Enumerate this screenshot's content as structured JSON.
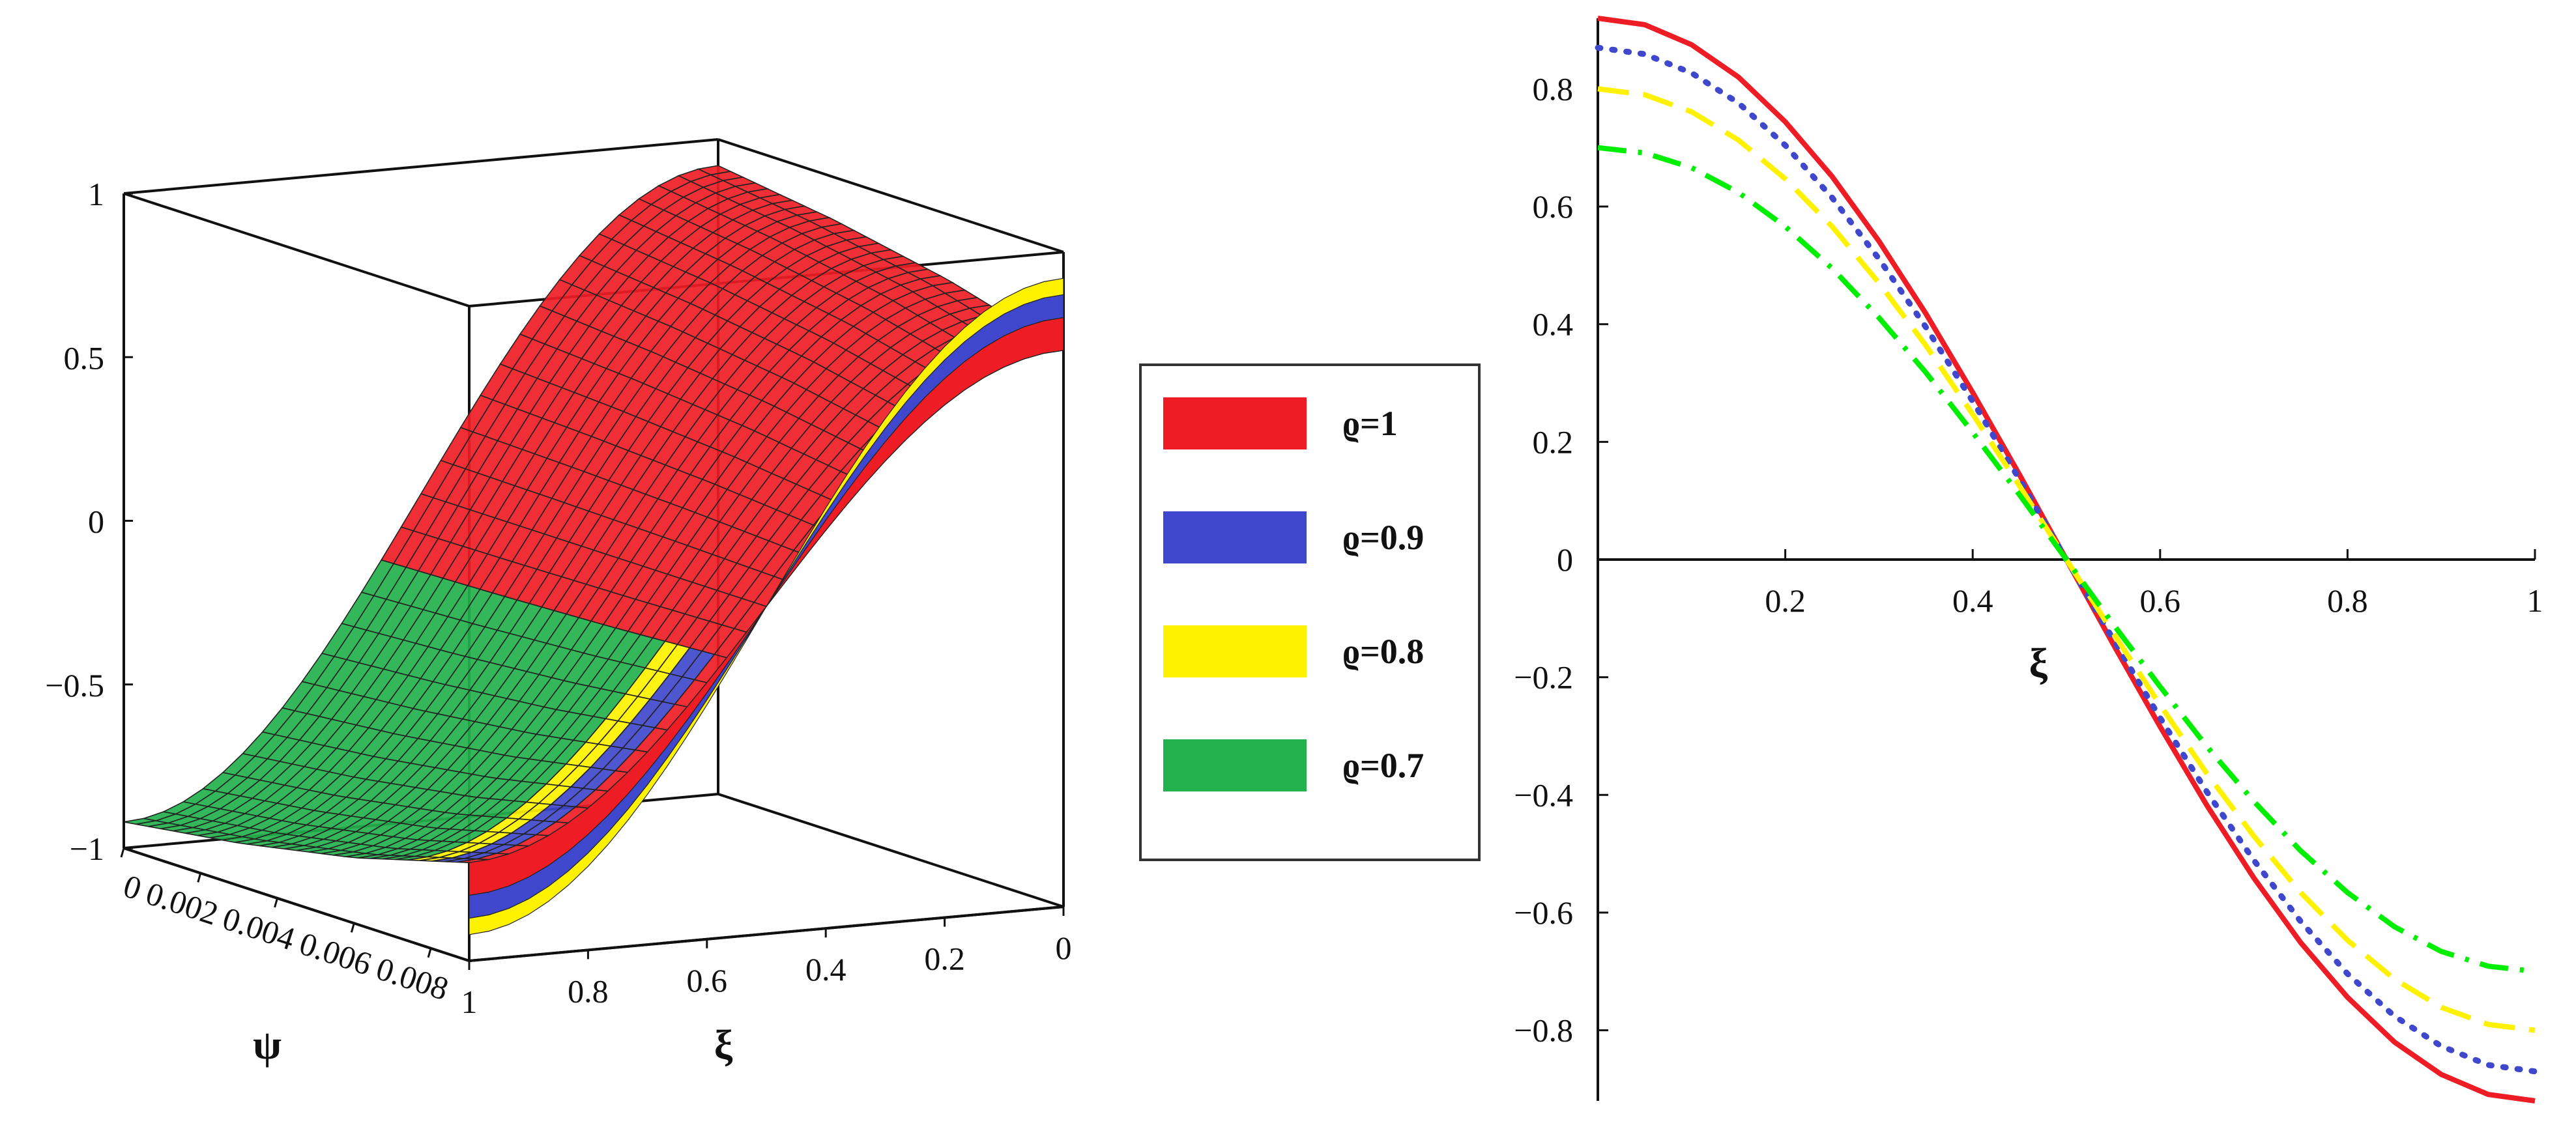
{
  "chart_data": [
    {
      "type": "surface",
      "title": "",
      "xlabel": "ψ",
      "ylabel": "ξ",
      "zlabel": "",
      "xlim": [
        0,
        0.009
      ],
      "ylim": [
        0,
        1
      ],
      "zlim": [
        -1,
        1
      ],
      "x_ticks": [
        "0",
        "0.002",
        "0.004",
        "0.006",
        "0.008"
      ],
      "y_ticks": [
        "1",
        "0.8",
        "0.6",
        "0.4",
        "0.2",
        "0"
      ],
      "z_ticks": [
        "1",
        "0.5",
        "0",
        "−0.5",
        "−1"
      ],
      "series": [
        {
          "name": "ϱ=1",
          "color": "#ee1c25",
          "amplitude": 0.92
        },
        {
          "name": "ϱ=0.9",
          "color": "#3f48cc",
          "amplitude": 0.87
        },
        {
          "name": "ϱ=0.8",
          "color": "#fff200",
          "amplitude": 0.8
        },
        {
          "name": "ϱ=0.7",
          "color": "#22b14c",
          "amplitude": 0.7
        }
      ],
      "legend": {
        "position": "right",
        "entries": [
          {
            "label": "ϱ=1",
            "color": "#ee1c25"
          },
          {
            "label": "ϱ=0.9",
            "color": "#3f48cc"
          },
          {
            "label": "ϱ=0.8",
            "color": "#fff200"
          },
          {
            "label": "ϱ=0.7",
            "color": "#22b14c"
          }
        ]
      }
    },
    {
      "type": "line",
      "title": "",
      "xlabel": "ξ",
      "ylabel": "",
      "xlim": [
        0,
        1
      ],
      "ylim": [
        -0.92,
        0.92
      ],
      "x_ticks": [
        0.2,
        0.4,
        0.6,
        0.8,
        1
      ],
      "x_tick_labels": [
        "0.2",
        "0.4",
        "0.6",
        "0.8",
        "1"
      ],
      "y_ticks": [
        0.8,
        0.6,
        0.4,
        0.2,
        0,
        -0.2,
        -0.4,
        -0.6,
        -0.8
      ],
      "y_tick_labels": [
        "0.8",
        "0.6",
        "0.4",
        "0.2",
        "0",
        "−0.2",
        "−0.4",
        "−0.6",
        "−0.8"
      ],
      "x": [
        0,
        0.05,
        0.1,
        0.15,
        0.2,
        0.25,
        0.3,
        0.35,
        0.4,
        0.45,
        0.5,
        0.55,
        0.6,
        0.65,
        0.7,
        0.75,
        0.8,
        0.85,
        0.9,
        0.95,
        1
      ],
      "series": [
        {
          "name": "ϱ=1",
          "color": "#ee1c25",
          "dash": "solid",
          "values": [
            0.92,
            0.909,
            0.875,
            0.82,
            0.744,
            0.651,
            0.541,
            0.418,
            0.284,
            0.144,
            0.0,
            -0.144,
            -0.284,
            -0.418,
            -0.541,
            -0.651,
            -0.744,
            -0.82,
            -0.875,
            -0.909,
            -0.92
          ]
        },
        {
          "name": "ϱ=0.9",
          "color": "#3f48cc",
          "dash": "dot",
          "values": [
            0.87,
            0.859,
            0.827,
            0.776,
            0.704,
            0.615,
            0.511,
            0.395,
            0.269,
            0.136,
            0.0,
            -0.136,
            -0.269,
            -0.395,
            -0.511,
            -0.615,
            -0.704,
            -0.776,
            -0.827,
            -0.859,
            -0.87
          ]
        },
        {
          "name": "ϱ=0.8",
          "color": "#fff200",
          "dash": "dash",
          "values": [
            0.8,
            0.79,
            0.761,
            0.713,
            0.647,
            0.566,
            0.47,
            0.364,
            0.247,
            0.125,
            0.0,
            -0.125,
            -0.247,
            -0.364,
            -0.47,
            -0.566,
            -0.647,
            -0.713,
            -0.761,
            -0.79,
            -0.8
          ]
        },
        {
          "name": "ϱ=0.7",
          "color": "#00ee00",
          "dash": "dashdot",
          "values": [
            0.7,
            0.691,
            0.666,
            0.624,
            0.566,
            0.495,
            0.411,
            0.318,
            0.216,
            0.11,
            0.0,
            -0.11,
            -0.216,
            -0.318,
            -0.411,
            -0.495,
            -0.566,
            -0.624,
            -0.666,
            -0.691,
            -0.7
          ]
        }
      ]
    }
  ]
}
